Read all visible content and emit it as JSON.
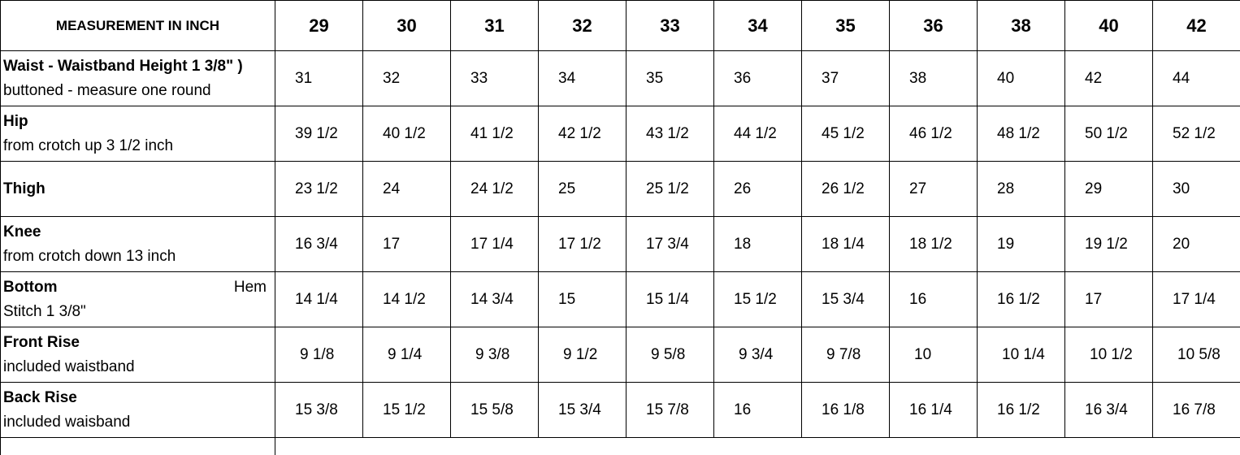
{
  "header": {
    "label": "MEASUREMENT IN INCH",
    "sizes": [
      "29",
      "30",
      "31",
      "32",
      "33",
      "34",
      "35",
      "36",
      "38",
      "40",
      "42"
    ]
  },
  "rows": [
    {
      "title": "Waist - Waistband Height 1 3/8\" )",
      "title_right": "",
      "subtitle": "buttoned - measure one round",
      "values": [
        "31",
        "32",
        "33",
        "34",
        "35",
        "36",
        "37",
        "38",
        "40",
        "42",
        "44"
      ]
    },
    {
      "title": "Hip",
      "title_right": "",
      "subtitle": "from crotch up 3 1/2 inch",
      "values": [
        "39 1/2",
        "40 1/2",
        "41 1/2",
        "42 1/2",
        "43 1/2",
        "44 1/2",
        "45 1/2",
        "46 1/2",
        "48 1/2",
        "50 1/2",
        "52 1/2"
      ]
    },
    {
      "title": "Thigh",
      "title_right": "",
      "subtitle": "",
      "values": [
        "23 1/2",
        "24",
        "24 1/2",
        "25",
        "25 1/2",
        "26",
        "26 1/2",
        "27",
        "28",
        "29",
        "30"
      ]
    },
    {
      "title": "Knee",
      "title_right": "",
      "subtitle": "from crotch down 13 inch",
      "values": [
        "16 3/4",
        "17",
        "17 1/4",
        "17 1/2",
        "17 3/4",
        "18",
        "18 1/4",
        "18 1/2",
        "19",
        "19 1/2",
        "20"
      ]
    },
    {
      "title": "Bottom",
      "title_right": "Hem",
      "subtitle": "Stitch 1 3/8\"",
      "values": [
        "14 1/4",
        "14 1/2",
        "14 3/4",
        "15",
        "15 1/4",
        "15 1/2",
        "15 3/4",
        "16",
        "16 1/2",
        "17",
        "17 1/4"
      ]
    },
    {
      "title": "Front Rise",
      "title_right": "",
      "subtitle": "included waistband",
      "values": [
        "9 1/8",
        "9 1/4",
        "9 3/8",
        "9 1/2",
        "9 5/8",
        "9 3/4",
        "9 7/8",
        "10",
        "10 1/4",
        "10 1/2",
        "10 5/8"
      ]
    },
    {
      "title": "Back Rise",
      "title_right": "",
      "subtitle": "included waisband",
      "values": [
        "15 3/8",
        "15 1/2",
        "15 5/8",
        "15 3/4",
        "15 7/8",
        "16",
        "16 1/8",
        "16 1/4",
        "16 1/2",
        "16 3/4",
        "16 7/8"
      ]
    }
  ]
}
